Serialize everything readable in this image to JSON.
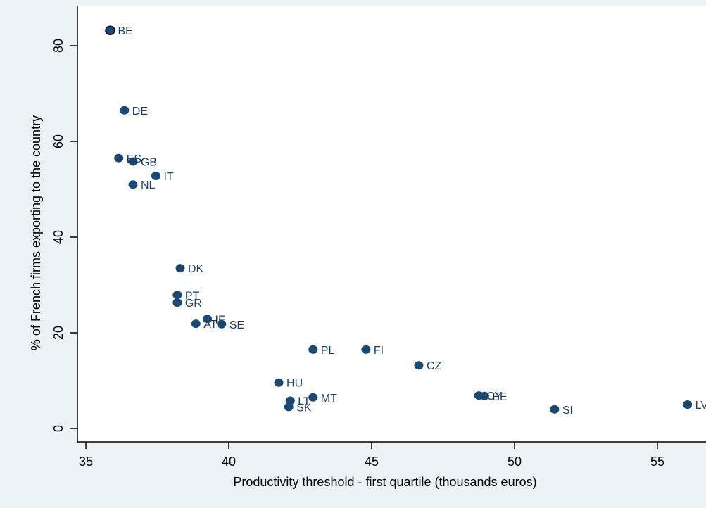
{
  "chart_data": {
    "type": "scatter",
    "xlabel": "Productivity threshold - first quartile (thousands euros)",
    "ylabel": "% of French firms exporting to the country",
    "xlim": [
      35,
      56
    ],
    "ylim": [
      0,
      85
    ],
    "xticks": [
      35,
      40,
      45,
      50,
      55
    ],
    "yticks": [
      0,
      20,
      40,
      60,
      80
    ],
    "grid": false,
    "marker_color": "#1a4a73",
    "background_color": "#eaf2f3",
    "plot_background_color": "#ffffff",
    "points": [
      {
        "label": "BE",
        "x": 35.85,
        "y": 83.2
      },
      {
        "label": "DE",
        "x": 36.35,
        "y": 66.5
      },
      {
        "label": "ES",
        "x": 36.15,
        "y": 56.5
      },
      {
        "label": "GB",
        "x": 36.65,
        "y": 55.8
      },
      {
        "label": "IT",
        "x": 37.45,
        "y": 52.8
      },
      {
        "label": "NL",
        "x": 36.65,
        "y": 51.0
      },
      {
        "label": "DK",
        "x": 38.3,
        "y": 33.5
      },
      {
        "label": "PT",
        "x": 38.2,
        "y": 27.9
      },
      {
        "label": "GR",
        "x": 38.2,
        "y": 26.3
      },
      {
        "label": "IE",
        "x": 39.25,
        "y": 22.9
      },
      {
        "label": "AT",
        "x": 38.85,
        "y": 21.9
      },
      {
        "label": "SE",
        "x": 39.75,
        "y": 21.8
      },
      {
        "label": "PL",
        "x": 42.95,
        "y": 16.5
      },
      {
        "label": "FI",
        "x": 44.8,
        "y": 16.5
      },
      {
        "label": "CZ",
        "x": 46.65,
        "y": 13.2
      },
      {
        "label": "HU",
        "x": 41.75,
        "y": 9.6
      },
      {
        "label": "MT",
        "x": 42.95,
        "y": 6.5
      },
      {
        "label": "LT",
        "x": 42.15,
        "y": 5.8
      },
      {
        "label": "SK",
        "x": 42.1,
        "y": 4.5
      },
      {
        "label": "CY",
        "x": 48.75,
        "y": 6.9
      },
      {
        "label": "EE",
        "x": 48.95,
        "y": 6.8
      },
      {
        "label": "SI",
        "x": 51.4,
        "y": 4.0
      },
      {
        "label": "LV",
        "x": 56.05,
        "y": 5.0
      }
    ]
  }
}
